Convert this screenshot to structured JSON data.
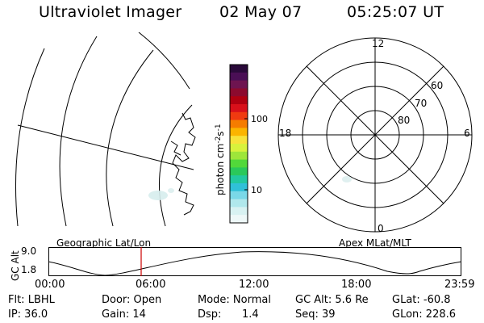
{
  "header": {
    "instrument": "Ultraviolet Imager",
    "date": "02 May 07",
    "time": "05:25:07 UT"
  },
  "colorbar": {
    "label": "photon cm",
    "label_sup1": "-2",
    "label_mid": "s",
    "label_sup2": "-1",
    "tick_high": "100",
    "tick_low": "10",
    "colors": [
      "#2a0a3a",
      "#4a0f55",
      "#6e1450",
      "#8c0a2e",
      "#b00010",
      "#d8101a",
      "#f03a10",
      "#f57c00",
      "#fbb400",
      "#f7e23a",
      "#d8f23c",
      "#9ee63a",
      "#52d83a",
      "#2ac85a",
      "#22c8a0",
      "#30c0d8",
      "#7ad8e8",
      "#b0e8ec",
      "#d8f2f2",
      "#eef8f8"
    ]
  },
  "polar": {
    "mlt_labels": {
      "top": "12",
      "bottom": "0",
      "left": "18",
      "right": "6"
    },
    "lat_labels": [
      "60",
      "70",
      "80"
    ]
  },
  "timeline": {
    "left_title": "Geographic Lat/Lon",
    "right_title": "Apex MLat/MLT",
    "yaxis_label": "GC Alt",
    "y_ticks": [
      "9.0",
      "1.8"
    ],
    "x_ticks": [
      "00:00",
      "06:00",
      "12:00",
      "18:00",
      "23:59"
    ]
  },
  "status": {
    "flt": "Flt: LBHL",
    "door": "Door: Open",
    "mode": "Mode: Normal",
    "gc_alt": "GC Alt: 5.6 Re",
    "glat": "GLat: -60.8",
    "ip": "IP: 36.0",
    "gain": "Gain: 14",
    "dsp_label": "Dsp:",
    "dsp_value": "1.4",
    "seq": "Seq: 39",
    "glon": "GLon: 228.6"
  }
}
